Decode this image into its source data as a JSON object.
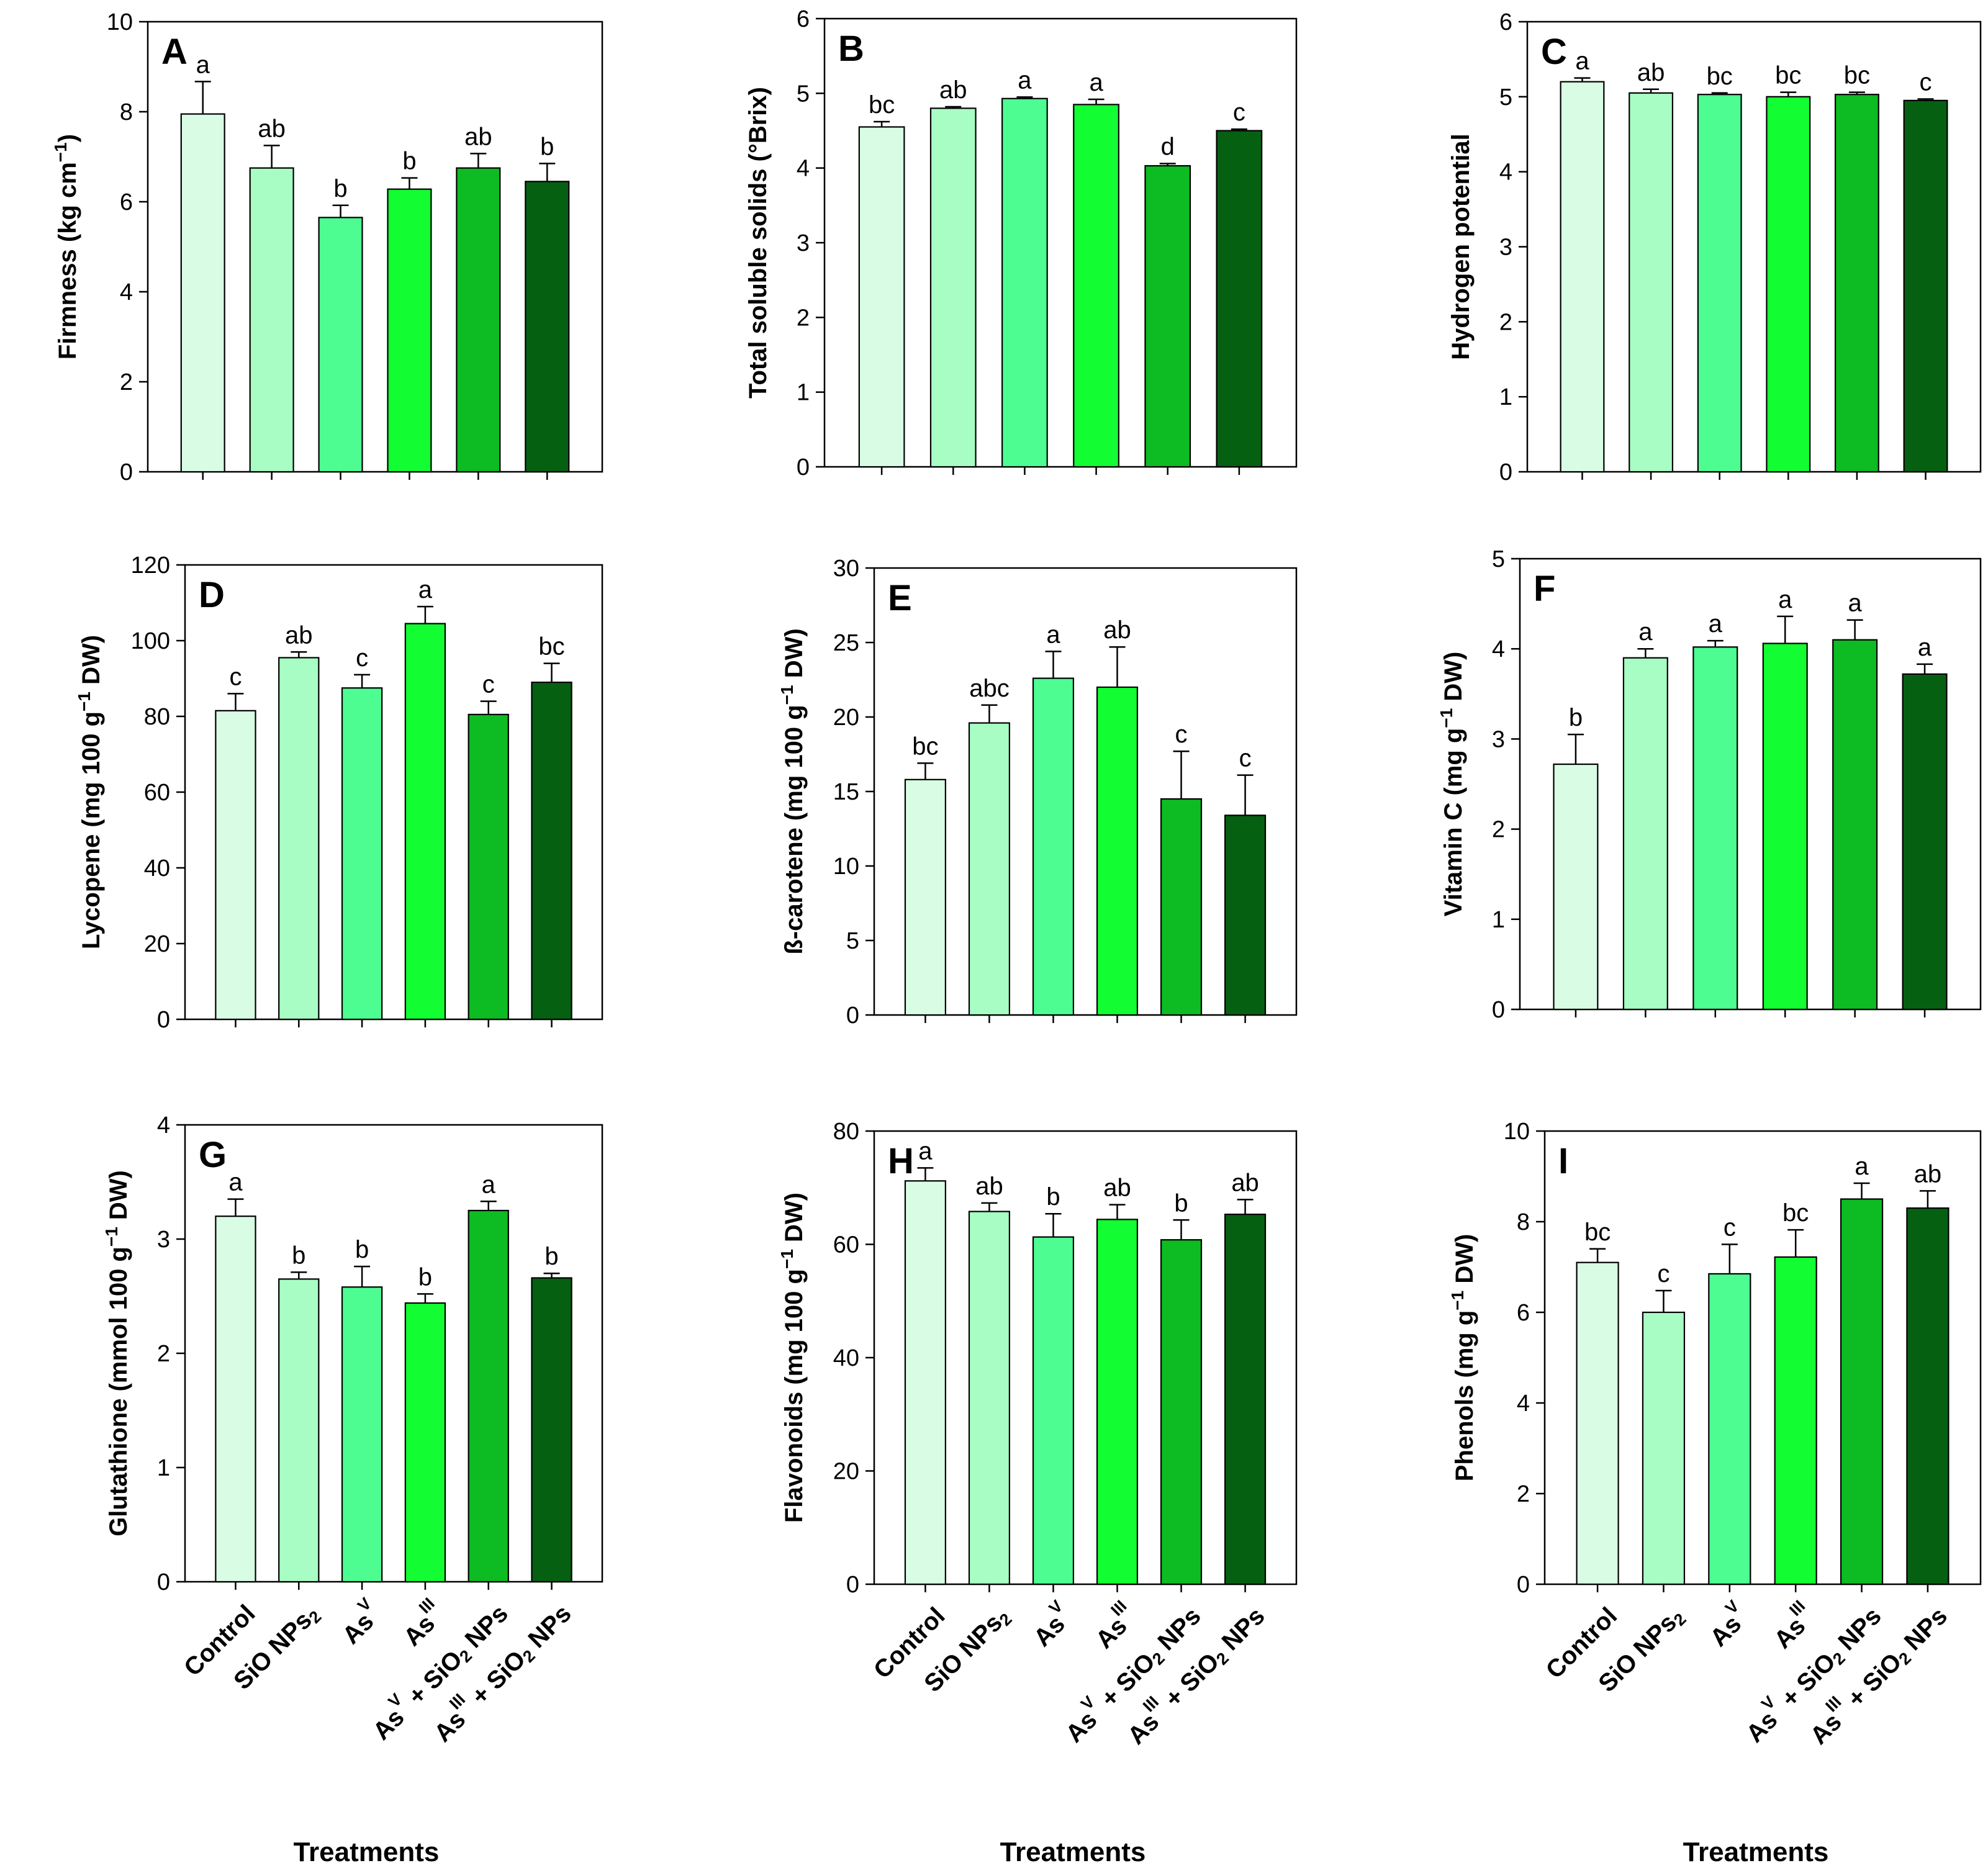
{
  "categories": [
    {
      "base": "Control"
    },
    {
      "base": "SiO",
      "sub": "2",
      "rest": " NPs"
    },
    {
      "base": "As",
      "sup": "V"
    },
    {
      "base": "As",
      "sup": "III"
    },
    {
      "base": "As",
      "sup": "V",
      "rest": " + SiO",
      "sub": "2",
      "tail": " NPs"
    },
    {
      "base": "As",
      "sup": "III",
      "rest": " + SiO",
      "sub": "2",
      "tail": " NPs"
    }
  ],
  "x_title": "Treatments",
  "bar_colors": [
    "#d9fde4",
    "#a8fdc4",
    "#4dfd92",
    "#12fd32",
    "#0dbb22",
    "#066012"
  ],
  "chart_data": [
    {
      "panel": "A",
      "type": "bar",
      "ylabel": "Firmness (kg cm",
      "ylabel_sup": "−1",
      "ylabel_tail": ")",
      "ylim": [
        0,
        10
      ],
      "yticks": [
        0,
        2,
        4,
        6,
        8,
        10
      ],
      "values": [
        7.95,
        6.75,
        5.65,
        6.28,
        6.75,
        6.45
      ],
      "errors": [
        0.72,
        0.5,
        0.27,
        0.25,
        0.32,
        0.4
      ],
      "letters": [
        "a",
        "ab",
        "b",
        "b",
        "ab",
        "b"
      ]
    },
    {
      "panel": "B",
      "type": "bar",
      "ylabel": "Total soluble solids (°Brix)",
      "ylim": [
        0,
        6
      ],
      "yticks": [
        0,
        1,
        2,
        3,
        4,
        5,
        6
      ],
      "values": [
        4.55,
        4.8,
        4.93,
        4.85,
        4.03,
        4.5
      ],
      "errors": [
        0.07,
        0.02,
        0.02,
        0.07,
        0.03,
        0.02
      ],
      "letters": [
        "bc",
        "ab",
        "a",
        "a",
        "d",
        "c"
      ]
    },
    {
      "panel": "C",
      "type": "bar",
      "ylabel": "Hydrogen potential",
      "ylim": [
        0,
        6
      ],
      "yticks": [
        0,
        1,
        2,
        3,
        4,
        5,
        6
      ],
      "values": [
        5.2,
        5.05,
        5.03,
        5.0,
        5.03,
        4.95
      ],
      "errors": [
        0.05,
        0.05,
        0.02,
        0.06,
        0.03,
        0.02
      ],
      "letters": [
        "a",
        "ab",
        "bc",
        "bc",
        "bc",
        "c"
      ]
    },
    {
      "panel": "D",
      "type": "bar",
      "ylabel": "Lycopene (mg 100 g",
      "ylabel_sup": "−1",
      "ylabel_tail": " DW)",
      "ylim": [
        0,
        120
      ],
      "yticks": [
        0,
        20,
        40,
        60,
        80,
        100,
        120
      ],
      "values": [
        81.5,
        95.5,
        87.5,
        104.5,
        80.5,
        89
      ],
      "errors": [
        4.5,
        1.5,
        3.5,
        4.5,
        3.5,
        5
      ],
      "letters": [
        "c",
        "ab",
        "c",
        "a",
        "c",
        "bc"
      ]
    },
    {
      "panel": "E",
      "type": "bar",
      "ylabel": "ß-carotene (mg 100 g",
      "ylabel_sup": "−1",
      "ylabel_tail": " DW)",
      "ylim": [
        0,
        30
      ],
      "yticks": [
        0,
        5,
        10,
        15,
        20,
        25,
        30
      ],
      "values": [
        15.8,
        19.6,
        22.6,
        22.0,
        14.5,
        13.4
      ],
      "errors": [
        1.1,
        1.2,
        1.8,
        2.7,
        3.2,
        2.7
      ],
      "letters": [
        "bc",
        "abc",
        "a",
        "ab",
        "c",
        "c"
      ]
    },
    {
      "panel": "F",
      "type": "bar",
      "ylabel": "Vitamin C (mg g",
      "ylabel_sup": "−1",
      "ylabel_tail": " DW)",
      "ylim": [
        0,
        5
      ],
      "yticks": [
        0,
        1,
        2,
        3,
        4,
        5
      ],
      "values": [
        2.72,
        3.9,
        4.02,
        4.06,
        4.1,
        3.72
      ],
      "errors": [
        0.33,
        0.1,
        0.07,
        0.3,
        0.22,
        0.11
      ],
      "letters": [
        "b",
        "a",
        "a",
        "a",
        "a",
        "a"
      ]
    },
    {
      "panel": "G",
      "type": "bar",
      "ylabel": "Glutathione (mmol 100 g",
      "ylabel_sup": "−1",
      "ylabel_tail": " DW)",
      "ylim": [
        0,
        4
      ],
      "yticks": [
        0,
        1,
        2,
        3,
        4
      ],
      "values": [
        3.2,
        2.65,
        2.58,
        2.44,
        3.25,
        2.66
      ],
      "errors": [
        0.15,
        0.06,
        0.18,
        0.08,
        0.08,
        0.04
      ],
      "letters": [
        "a",
        "b",
        "b",
        "b",
        "a",
        "b"
      ]
    },
    {
      "panel": "H",
      "type": "bar",
      "ylabel": "Flavonoids (mg 100 g",
      "ylabel_sup": "−1",
      "ylabel_tail": " DW)",
      "ylim": [
        0,
        80
      ],
      "yticks": [
        0,
        20,
        40,
        60,
        80
      ],
      "values": [
        71.2,
        65.8,
        61.3,
        64.4,
        60.8,
        65.3
      ],
      "errors": [
        2.3,
        1.5,
        4.1,
        2.6,
        3.5,
        2.6
      ],
      "letters": [
        "a",
        "ab",
        "b",
        "ab",
        "b",
        "ab"
      ]
    },
    {
      "panel": "I",
      "type": "bar",
      "ylabel": "Phenols (mg g",
      "ylabel_sup": "−1",
      "ylabel_tail": " DW)",
      "ylim": [
        0,
        10
      ],
      "yticks": [
        0,
        2,
        4,
        6,
        8,
        10
      ],
      "values": [
        7.1,
        6.0,
        6.85,
        7.22,
        8.5,
        8.3
      ],
      "errors": [
        0.3,
        0.48,
        0.65,
        0.6,
        0.35,
        0.38
      ],
      "letters": [
        "bc",
        "c",
        "c",
        "bc",
        "a",
        "ab"
      ]
    }
  ]
}
